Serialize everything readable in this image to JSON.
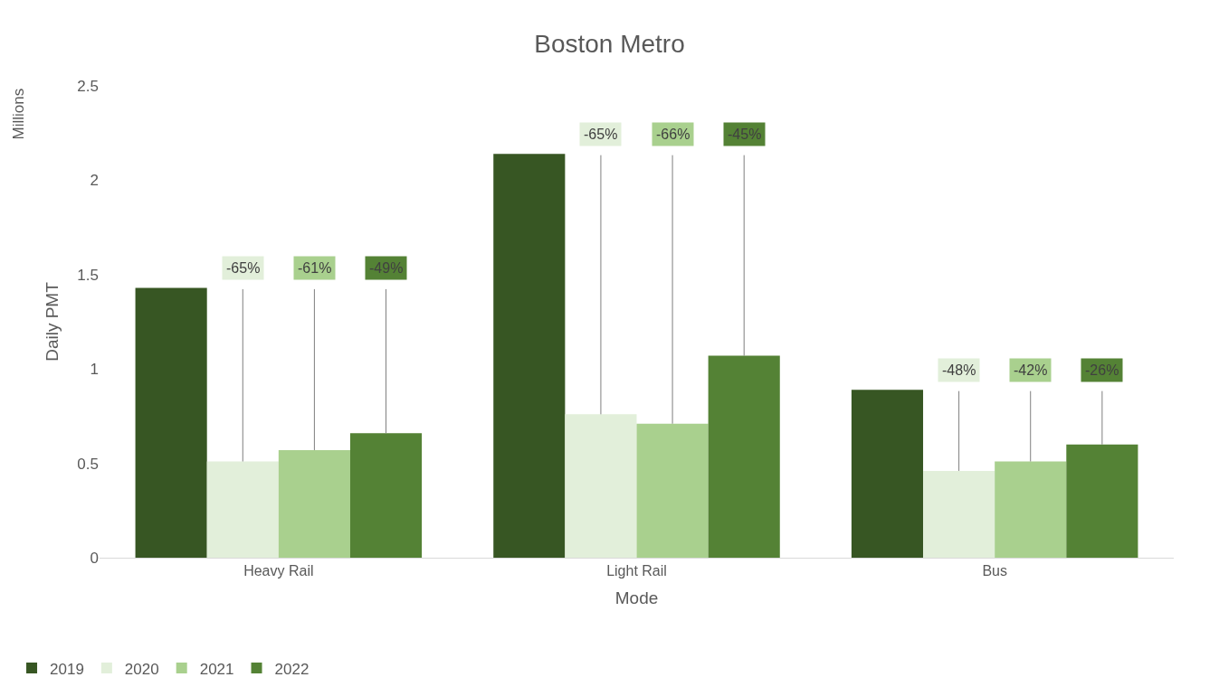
{
  "chart_data": {
    "type": "bar",
    "title": "Boston Metro",
    "xlabel": "Mode",
    "ylabel": "Daily PMT",
    "annotations": [
      "Millions",
      {
        "text": "-65%",
        "y": 0.51
      },
      {
        "text": "-61%",
        "y": 0.57
      },
      {
        "text": "-49%",
        "y": 0.66
      },
      {
        "text": "-65%",
        "y": 0.76
      },
      {
        "text": "-66%",
        "y": 0.71
      },
      {
        "text": "-45%",
        "y": 1.07
      },
      {
        "text": "-48%",
        "y": 0.46
      },
      {
        "text": "-42%",
        "y": 0.51
      },
      {
        "text": "-26%",
        "y": 0.6
      }
    ],
    "categories": [
      "Heavy Rail",
      "Light Rail",
      "Bus"
    ],
    "series": [
      {
        "name": "2019",
        "color": "#375623",
        "values": [
          1.43,
          2.14,
          0.89
        ]
      },
      {
        "name": "2020",
        "color": "#e2efda",
        "values": [
          0.51,
          0.76,
          0.46
        ]
      },
      {
        "name": "2021",
        "color": "#a9d08e",
        "values": [
          0.57,
          0.71,
          0.51
        ]
      },
      {
        "name": "2022",
        "color": "#548235",
        "values": [
          0.66,
          1.07,
          0.6
        ]
      }
    ],
    "ylim": [
      0,
      2.5
    ],
    "yticks": [
      0,
      0.5,
      1,
      1.5,
      2,
      2.5
    ],
    "legend": "bottom left"
  }
}
